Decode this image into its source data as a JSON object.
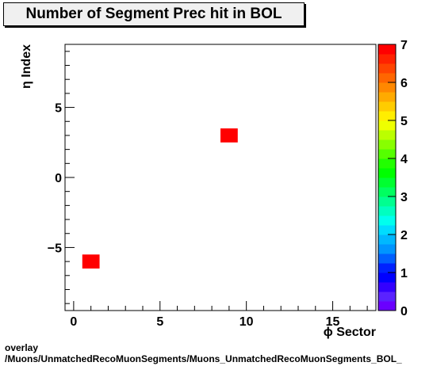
{
  "chart_data": {
    "type": "heatmap",
    "title": "Number of Segment Prec hit in BOL",
    "xlabel": "ϕ Sector",
    "ylabel": "η Index",
    "xlim": [
      -0.5,
      17.5
    ],
    "ylim": [
      -9.5,
      9.5
    ],
    "x_ticks": [
      0,
      5,
      10,
      15
    ],
    "y_ticks": [
      -5,
      0,
      5
    ],
    "z_range": [
      0,
      7
    ],
    "z_ticks": [
      0,
      1,
      2,
      3,
      4,
      5,
      6,
      7
    ],
    "cells": [
      {
        "x": 1,
        "y": -6,
        "z": 7
      },
      {
        "x": 9,
        "y": 3,
        "z": 7
      }
    ],
    "palette": [
      "#6a00ff",
      "#5a22ff",
      "#3300ff",
      "#0000ff",
      "#0022ff",
      "#0060ff",
      "#0095ff",
      "#00b8ff",
      "#00dcff",
      "#00ffee",
      "#00ffc0",
      "#00ff90",
      "#00ff60",
      "#00ff30",
      "#00ff00",
      "#22ff00",
      "#55ff00",
      "#88ff00",
      "#bbff00",
      "#eeff00",
      "#ffee00",
      "#ffcc00",
      "#ffaa00",
      "#ff8800",
      "#ff6600",
      "#ff4400",
      "#ff2200",
      "#ff0000"
    ]
  },
  "footer": {
    "line1": "overlay",
    "line2": "/Muons/UnmatchedRecoMuonSegments/Muons_UnmatchedRecoMuonSegments_BOL_"
  }
}
